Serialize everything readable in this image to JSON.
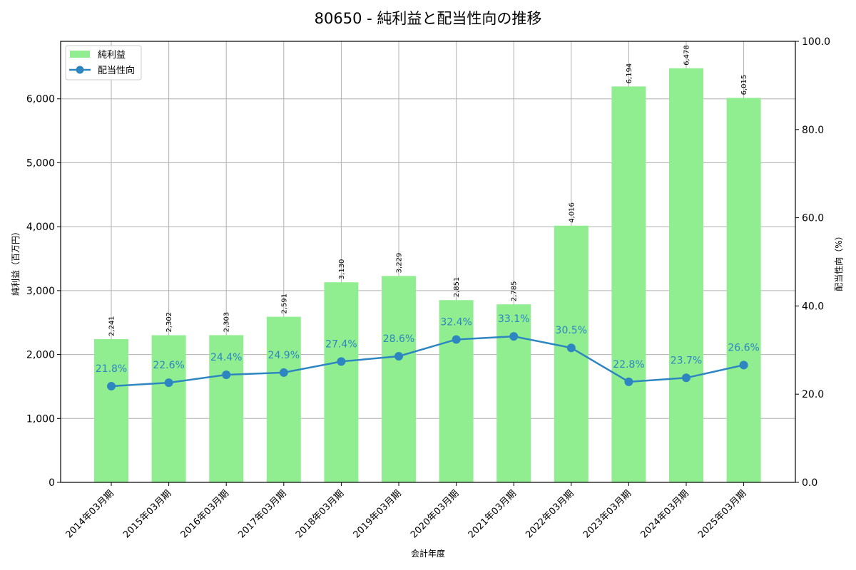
{
  "chart_data": {
    "type": "bar+line",
    "title": "80650 - 純利益と配当性向の推移",
    "xlabel": "会計年度",
    "ylabel": "純利益（百万円）",
    "y2label": "配当性向（%）",
    "categories": [
      "2014年03月期",
      "2015年03月期",
      "2016年03月期",
      "2017年03月期",
      "2018年03月期",
      "2019年03月期",
      "2020年03月期",
      "2021年03月期",
      "2022年03月期",
      "2023年03月期",
      "2024年03月期",
      "2025年03月期"
    ],
    "series": [
      {
        "name": "純利益",
        "type": "bar",
        "axis": "left",
        "color": "#90ee90",
        "values": [
          2241,
          2302,
          2303,
          2591,
          3130,
          3229,
          2851,
          2785,
          4016,
          6194,
          6478,
          6015
        ],
        "labels": [
          "2,241",
          "2,302",
          "2,303",
          "2,591",
          "3,130",
          "3,229",
          "2,851",
          "2,785",
          "4,016",
          "6,194",
          "6,478",
          "6,015"
        ]
      },
      {
        "name": "配当性向",
        "type": "line",
        "axis": "right",
        "color": "#2e86c1",
        "values": [
          21.8,
          22.6,
          24.4,
          24.9,
          27.4,
          28.6,
          32.4,
          33.1,
          30.5,
          22.8,
          23.7,
          26.6
        ],
        "labels": [
          "21.8%",
          "22.6%",
          "24.4%",
          "24.9%",
          "27.4%",
          "28.6%",
          "32.4%",
          "33.1%",
          "30.5%",
          "22.8%",
          "23.7%",
          "26.6%"
        ]
      }
    ],
    "ylim": [
      0,
      6900
    ],
    "y2lim": [
      0,
      100
    ],
    "yticks": [
      0,
      1000,
      2000,
      3000,
      4000,
      5000,
      6000
    ],
    "ytick_labels": [
      "0",
      "1,000",
      "2,000",
      "3,000",
      "4,000",
      "5,000",
      "6,000"
    ],
    "y2ticks": [
      0,
      20,
      40,
      60,
      80,
      100
    ],
    "y2tick_labels": [
      "0.0",
      "20.0",
      "40.0",
      "60.0",
      "80.0",
      "100.0"
    ],
    "grid": true,
    "legend_position": "upper left"
  }
}
